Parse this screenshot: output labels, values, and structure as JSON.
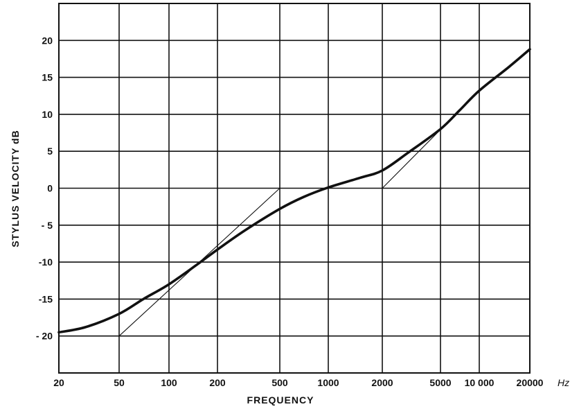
{
  "chart_data": {
    "type": "line",
    "title": "",
    "xlabel": "FREQUENCY",
    "xunit": "Hz",
    "ylabel": "STYLUS VELOCITY  dB",
    "x_scale": "log-frequency (uneven tick spacing)",
    "x_ticks": [
      20,
      50,
      100,
      200,
      500,
      1000,
      2000,
      5000,
      10000,
      20000
    ],
    "x_tick_labels": [
      "20",
      "50",
      "100",
      "200",
      "500",
      "1000",
      "2000",
      "5000",
      "10 000",
      "20000"
    ],
    "y_ticks": [
      20,
      15,
      10,
      5,
      0,
      -5,
      -10,
      -15,
      -20
    ],
    "y_tick_labels": [
      "20",
      "15",
      "10",
      "5",
      "0",
      "- 5",
      "-10",
      "-15",
      "- 20"
    ],
    "ylim": [
      -25,
      25
    ],
    "xlim": [
      20,
      20000
    ],
    "grid": true,
    "legend": "none",
    "series": [
      {
        "style": "thick",
        "x": [
          20,
          30,
          50,
          70,
          100,
          150,
          200,
          300,
          500,
          700,
          1000,
          1500,
          2000,
          3000,
          5000,
          7000,
          10000,
          15000,
          20000
        ],
        "y": [
          -19.5,
          -18.8,
          -17.0,
          -15.0,
          -13.0,
          -10.3,
          -8.3,
          -5.7,
          -2.8,
          -1.2,
          0.1,
          1.4,
          2.4,
          4.8,
          8.0,
          10.5,
          13.2,
          16.4,
          18.8
        ]
      },
      {
        "style": "thin",
        "x": [
          50,
          500
        ],
        "y": [
          -20,
          0
        ]
      },
      {
        "style": "thin",
        "x": [
          2000,
          7000
        ],
        "y": [
          0,
          10.5
        ]
      }
    ],
    "colors": {
      "line": "#111111",
      "grid": "#111111",
      "background": "#ffffff"
    }
  }
}
